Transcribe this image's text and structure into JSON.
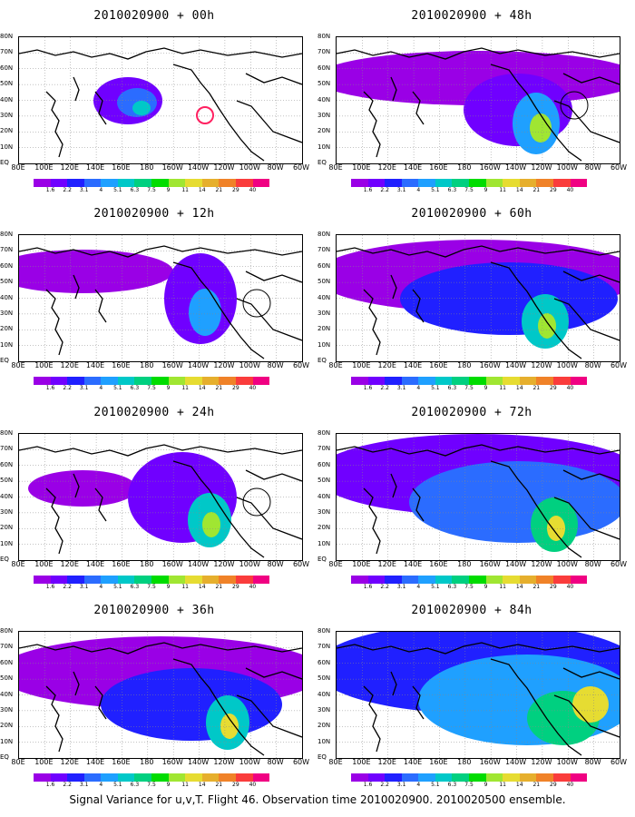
{
  "caption": "Signal Variance for u,v,T. Flight 46. Observation time 2010020900. 2010020500 ensemble.",
  "x_tick_labels": [
    "80E",
    "100E",
    "120E",
    "140E",
    "160E",
    "180",
    "160W",
    "140W",
    "120W",
    "100W",
    "80W",
    "60W"
  ],
  "y_tick_labels": [
    "80N",
    "70N",
    "60N",
    "50N",
    "40N",
    "30N",
    "20N",
    "10N",
    "EQ"
  ],
  "colorbar": {
    "labels": [
      "1.6",
      "2.2",
      "3.1",
      "4",
      "5.1",
      "6.3",
      "7.5",
      "9",
      "11",
      "14",
      "21",
      "29",
      "40"
    ],
    "colors": [
      "#9a00e6",
      "#7000ff",
      "#2020ff",
      "#2b6cff",
      "#1fa0ff",
      "#00c8c8",
      "#00d080",
      "#00dc00",
      "#a0e632",
      "#e6dc32",
      "#e6af2d",
      "#f08228",
      "#fa3c3c",
      "#f00082"
    ]
  },
  "panels": [
    {
      "id": "p00",
      "title": "2010020900 + 00h"
    },
    {
      "id": "p48",
      "title": "2010020900 + 48h"
    },
    {
      "id": "p12",
      "title": "2010020900 + 12h"
    },
    {
      "id": "p60",
      "title": "2010020900 + 60h"
    },
    {
      "id": "p24",
      "title": "2010020900 + 24h"
    },
    {
      "id": "p72",
      "title": "2010020900 + 72h"
    },
    {
      "id": "p36",
      "title": "2010020900 + 36h"
    },
    {
      "id": "p84",
      "title": "2010020900 + 84h"
    }
  ]
}
